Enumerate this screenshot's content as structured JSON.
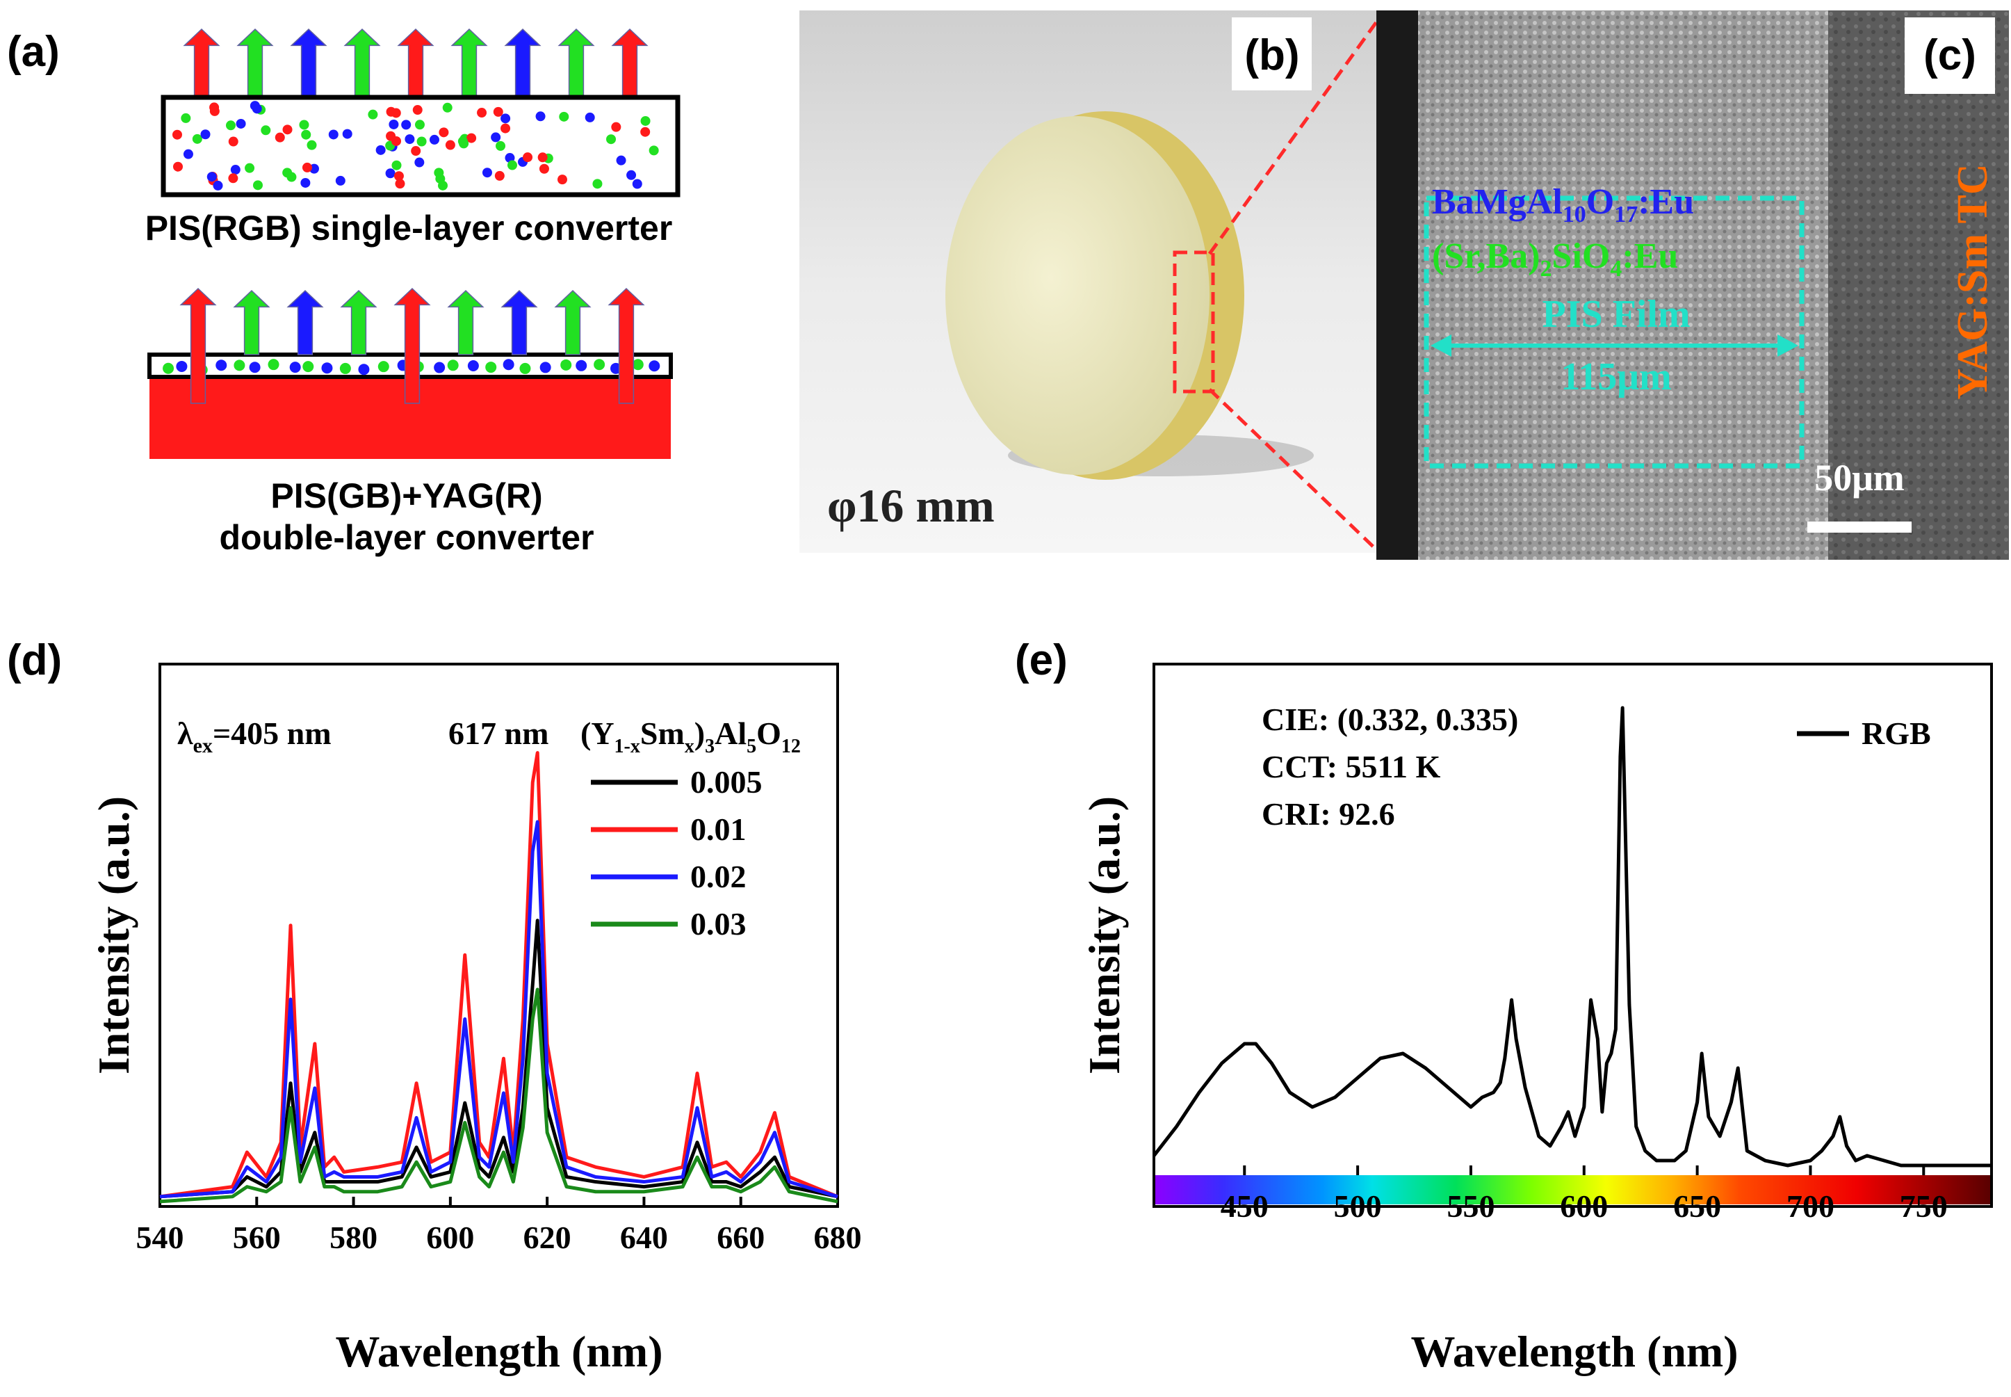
{
  "panel_a": {
    "label": "(a)",
    "single_caption": "PIS(RGB) single-layer converter",
    "double_caption_line1": "PIS(GB)+YAG(R)",
    "double_caption_line2": "double-layer converter",
    "colors": {
      "red": "#ff1a1a",
      "green": "#22e022",
      "blue": "#1a1aff"
    }
  },
  "panel_b": {
    "label": "(b)",
    "diameter": "φ16 mm"
  },
  "panel_c": {
    "label": "(c)",
    "phosphor1_main": "BaMgAl",
    "phosphor1_s1": "10",
    "phosphor1_mid": "O",
    "phosphor1_s2": "17",
    "phosphor1_tail": ":Eu",
    "phosphor2_main": "(Sr,Ba)",
    "phosphor2_s1": "2",
    "phosphor2_mid": "SiO",
    "phosphor2_s2": "4",
    "phosphor2_tail": ":Eu",
    "film": "PIS Film",
    "thickness": "115μm",
    "side_label": "YAG:Sm TC",
    "scale": "50μm"
  },
  "panel_d": {
    "label": "(d)",
    "lambda_sym": "λ",
    "lambda_sub": "ex",
    "lambda_val": "=405 nm",
    "peak": "617 nm",
    "formula_a": "(Y",
    "formula_b": "1-x",
    "formula_c": "Sm",
    "formula_d": "x",
    "formula_e": ")",
    "formula_f": "3",
    "formula_g": "Al",
    "formula_h": "5",
    "formula_i": "O",
    "formula_j": "12",
    "ylabel": "Intensity (a.u.)",
    "xlabel": "Wavelength (nm)"
  },
  "panel_e": {
    "label": "(e)",
    "cie": "CIE: (0.332, 0.335)",
    "cct": "CCT: 5511 K",
    "cri": "CRI: 92.6",
    "ylabel": "Intensity (a.u.)",
    "xlabel": "Wavelength (nm)"
  },
  "chart_data": [
    {
      "type": "line",
      "panel": "d",
      "xlabel": "Wavelength (nm)",
      "ylabel": "Intensity (a.u.)",
      "xlim": [
        540,
        680
      ],
      "ylim": [
        0,
        1.1
      ],
      "xticks": [
        540,
        560,
        580,
        600,
        620,
        640,
        660,
        680
      ],
      "legend_title": "(Y1-xSmx)3Al5O12",
      "legend_position": "top-right",
      "series": [
        {
          "name": "0.005",
          "color": "#000000",
          "x": [
            540,
            555,
            558,
            562,
            565,
            567,
            569,
            572,
            574,
            576,
            578,
            585,
            590,
            593,
            596,
            600,
            603,
            606,
            608,
            611,
            613,
            615,
            617,
            618,
            620,
            624,
            630,
            640,
            648,
            651,
            654,
            657,
            660,
            664,
            667,
            670,
            680
          ],
          "y": [
            0.02,
            0.03,
            0.06,
            0.04,
            0.07,
            0.25,
            0.07,
            0.15,
            0.05,
            0.05,
            0.05,
            0.05,
            0.06,
            0.12,
            0.06,
            0.07,
            0.21,
            0.08,
            0.06,
            0.14,
            0.07,
            0.2,
            0.45,
            0.58,
            0.2,
            0.06,
            0.05,
            0.04,
            0.05,
            0.13,
            0.05,
            0.05,
            0.04,
            0.07,
            0.1,
            0.04,
            0.02
          ]
        },
        {
          "name": "0.01",
          "color": "#ff1a1a",
          "x": [
            540,
            555,
            558,
            562,
            565,
            567,
            569,
            572,
            574,
            576,
            578,
            585,
            590,
            593,
            596,
            600,
            603,
            606,
            608,
            611,
            613,
            615,
            617,
            618,
            620,
            624,
            630,
            640,
            648,
            651,
            654,
            657,
            660,
            664,
            667,
            670,
            680
          ],
          "y": [
            0.02,
            0.04,
            0.11,
            0.06,
            0.13,
            0.57,
            0.12,
            0.33,
            0.08,
            0.1,
            0.07,
            0.08,
            0.09,
            0.25,
            0.09,
            0.11,
            0.51,
            0.13,
            0.1,
            0.3,
            0.11,
            0.38,
            0.86,
            0.92,
            0.33,
            0.1,
            0.08,
            0.06,
            0.08,
            0.27,
            0.08,
            0.09,
            0.06,
            0.11,
            0.19,
            0.06,
            0.02
          ]
        },
        {
          "name": "0.02",
          "color": "#1a1aff",
          "x": [
            540,
            555,
            558,
            562,
            565,
            567,
            569,
            572,
            574,
            576,
            578,
            585,
            590,
            593,
            596,
            600,
            603,
            606,
            608,
            611,
            613,
            615,
            617,
            618,
            620,
            624,
            630,
            640,
            648,
            651,
            654,
            657,
            660,
            664,
            667,
            670,
            680
          ],
          "y": [
            0.02,
            0.03,
            0.08,
            0.05,
            0.1,
            0.42,
            0.09,
            0.24,
            0.06,
            0.07,
            0.06,
            0.06,
            0.07,
            0.18,
            0.07,
            0.09,
            0.38,
            0.1,
            0.08,
            0.23,
            0.09,
            0.3,
            0.72,
            0.78,
            0.27,
            0.08,
            0.06,
            0.05,
            0.06,
            0.2,
            0.06,
            0.07,
            0.05,
            0.09,
            0.15,
            0.05,
            0.02
          ]
        },
        {
          "name": "0.03",
          "color": "#1a8a1a",
          "x": [
            540,
            555,
            558,
            562,
            565,
            567,
            569,
            572,
            574,
            576,
            578,
            585,
            590,
            593,
            596,
            600,
            603,
            606,
            608,
            611,
            613,
            615,
            617,
            618,
            620,
            624,
            630,
            640,
            648,
            651,
            654,
            657,
            660,
            664,
            667,
            670,
            680
          ],
          "y": [
            0.01,
            0.02,
            0.04,
            0.03,
            0.05,
            0.2,
            0.05,
            0.12,
            0.04,
            0.04,
            0.03,
            0.03,
            0.04,
            0.09,
            0.04,
            0.05,
            0.17,
            0.06,
            0.04,
            0.11,
            0.05,
            0.16,
            0.38,
            0.44,
            0.15,
            0.04,
            0.03,
            0.03,
            0.04,
            0.1,
            0.04,
            0.04,
            0.03,
            0.05,
            0.08,
            0.03,
            0.01
          ]
        }
      ]
    },
    {
      "type": "line",
      "panel": "e",
      "xlabel": "Wavelength (nm)",
      "ylabel": "Intensity (a.u.)",
      "xlim": [
        410,
        780
      ],
      "ylim": [
        0,
        1.05
      ],
      "xticks": [
        450,
        500,
        550,
        600,
        650,
        700,
        750
      ],
      "legend_position": "top-right",
      "series": [
        {
          "name": "RGB",
          "color": "#000000",
          "x": [
            410,
            420,
            430,
            440,
            450,
            455,
            462,
            470,
            480,
            490,
            500,
            510,
            520,
            530,
            540,
            550,
            555,
            560,
            563,
            565,
            568,
            570,
            572,
            574,
            577,
            580,
            585,
            590,
            593,
            596,
            600,
            603,
            606,
            608,
            610,
            612,
            614,
            616,
            617,
            618,
            620,
            623,
            627,
            632,
            640,
            645,
            650,
            652,
            655,
            660,
            665,
            668,
            672,
            680,
            690,
            700,
            705,
            710,
            713,
            716,
            720,
            725,
            740,
            760,
            780
          ],
          "y": [
            0.04,
            0.1,
            0.17,
            0.23,
            0.27,
            0.27,
            0.23,
            0.17,
            0.14,
            0.16,
            0.2,
            0.24,
            0.25,
            0.22,
            0.18,
            0.14,
            0.16,
            0.17,
            0.19,
            0.24,
            0.36,
            0.28,
            0.23,
            0.18,
            0.13,
            0.08,
            0.06,
            0.1,
            0.13,
            0.08,
            0.14,
            0.36,
            0.28,
            0.13,
            0.23,
            0.25,
            0.3,
            0.86,
            0.96,
            0.76,
            0.35,
            0.1,
            0.05,
            0.03,
            0.03,
            0.05,
            0.15,
            0.25,
            0.12,
            0.08,
            0.15,
            0.22,
            0.05,
            0.03,
            0.02,
            0.03,
            0.05,
            0.08,
            0.12,
            0.06,
            0.03,
            0.04,
            0.02,
            0.02,
            0.02
          ]
        }
      ]
    }
  ]
}
